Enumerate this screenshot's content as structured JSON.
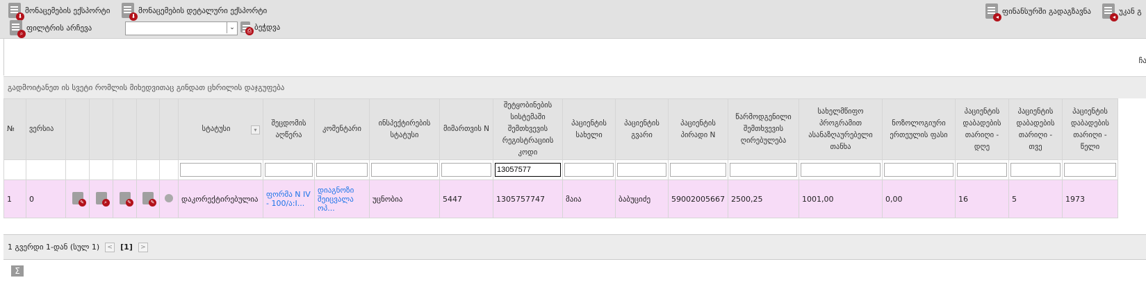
{
  "toolbar": {
    "export": "მონაცემების ექსპორტი",
    "export_detailed": "მონაცემების დეტალური ექსპორტი",
    "choose_filter": "ფილტრის არჩევა",
    "filter_select": "",
    "print": "ბეჭდვა",
    "send_finance": "ფინანსურში გადაგზავნა",
    "return": "უკან გ"
  },
  "right_label": "ჩა",
  "group_hint": "გადმოიტანეთ ის სვეტი რომლის მიხედვითაც გინდათ ცხრილის დაჯგუფება",
  "columns": [
    "№",
    "ვერსია",
    "",
    "",
    "",
    "",
    "",
    "სტატუსი",
    "შეცდომის აღწერა",
    "კომენტარი",
    "ინსპექტირების სტატუსი",
    "მიმართვის N",
    "შეტყობინების სისტემაში შემთხვევის რეგისტრაციის კოდი",
    "პაციენტის სახელი",
    "პაციენტის გვარი",
    "პაციენტის პირადი N",
    "წარმოდგენილი შემთხვევის ღირებულება",
    "სახელმწიფო პროგრამით ასანაზღაურებელი თანხა",
    "ნოზოლოგიური ერთეულის ფასი",
    "პაციენტის დაბადების თარიღი - დღე",
    "პაციენტის დაბადების თარიღი - თვე",
    "პაციენტის დაბადების თარიღი - წელი"
  ],
  "filters": {
    "registration_code": "13057577"
  },
  "rows": [
    [
      "1",
      "0",
      "edit-icon",
      "view-icon",
      "copy-icon",
      "edit-icon",
      "pen-icon",
      "დაკორექტირებულია",
      "ფორმა N IV - 100/ა:I...",
      "დიაგნოზი შეიცვალა ოპ...",
      "უცნობია",
      "5447",
      "1305757747",
      "მაია",
      "ბაბუციძე",
      "59002005667",
      "2500,25",
      "1001,00",
      "0,00",
      "16",
      "5",
      "1973"
    ]
  ],
  "pager": {
    "summary": "1 გვერდი 1-დან (სულ 1)",
    "current": "[1]"
  },
  "colors": {
    "row": "#f7dcf7",
    "link": "#1a73e8",
    "icon_badge": "#b3121b"
  }
}
